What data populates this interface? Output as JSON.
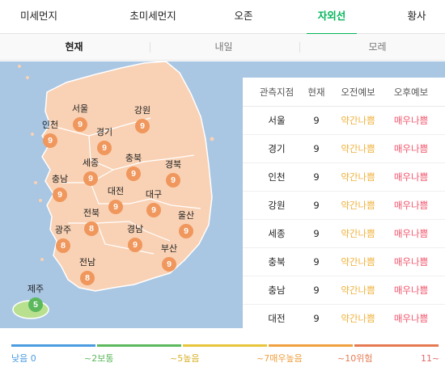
{
  "tabs": [
    {
      "label": "미세먼지",
      "active": false
    },
    {
      "label": "초미세먼지",
      "active": false
    },
    {
      "label": "오존",
      "active": false
    },
    {
      "label": "자외선",
      "active": true
    },
    {
      "label": "황사",
      "active": false
    }
  ],
  "subtabs": [
    {
      "label": "현재",
      "active": true
    },
    {
      "label": "내일",
      "active": false
    },
    {
      "label": "모레",
      "active": false
    }
  ],
  "map": {
    "regions": [
      {
        "name": "서울",
        "value": "9"
      },
      {
        "name": "강원",
        "value": "9"
      },
      {
        "name": "인천",
        "value": "9"
      },
      {
        "name": "경기",
        "value": "9"
      },
      {
        "name": "세종",
        "value": "9"
      },
      {
        "name": "충북",
        "value": "9"
      },
      {
        "name": "경북",
        "value": "9"
      },
      {
        "name": "충남",
        "value": "9"
      },
      {
        "name": "대전",
        "value": "9"
      },
      {
        "name": "대구",
        "value": "9"
      },
      {
        "name": "전북",
        "value": "8"
      },
      {
        "name": "울산",
        "value": "9"
      },
      {
        "name": "광주",
        "value": "8"
      },
      {
        "name": "경남",
        "value": "9"
      },
      {
        "name": "부산",
        "value": "9"
      },
      {
        "name": "전남",
        "value": "8"
      },
      {
        "name": "제주",
        "value": "5"
      }
    ],
    "colors": {
      "sea": "#a9c6e3",
      "land": "#f9d2b5",
      "badge_high": "#f0975d",
      "badge_mid": "#5cb85c"
    }
  },
  "table": {
    "headers": [
      "관측지점",
      "현재",
      "오전예보",
      "오후예보"
    ],
    "rows": [
      {
        "name": "서울",
        "now": "9",
        "am": "약간나쁨",
        "pm": "매우나쁨"
      },
      {
        "name": "경기",
        "now": "9",
        "am": "약간나쁨",
        "pm": "매우나쁨"
      },
      {
        "name": "인천",
        "now": "9",
        "am": "약간나쁨",
        "pm": "매우나쁨"
      },
      {
        "name": "강원",
        "now": "9",
        "am": "약간나쁨",
        "pm": "매우나쁨"
      },
      {
        "name": "세종",
        "now": "9",
        "am": "약간나쁨",
        "pm": "매우나쁨"
      },
      {
        "name": "충북",
        "now": "9",
        "am": "약간나쁨",
        "pm": "매우나쁨"
      },
      {
        "name": "충남",
        "now": "9",
        "am": "약간나쁨",
        "pm": "매우나쁨"
      },
      {
        "name": "대전",
        "now": "9",
        "am": "약간나쁨",
        "pm": "매우나쁨"
      }
    ]
  },
  "legend": [
    {
      "label": "낮음 0",
      "color": "#4a9be0"
    },
    {
      "label": "~2보통",
      "color": "#5cb85c"
    },
    {
      "label": "~5높음",
      "color": "#e8c53a"
    },
    {
      "label": "~7매우높음",
      "color": "#f0a040"
    },
    {
      "label": "~10위험",
      "color": "#e57a52"
    },
    {
      "label": "11~",
      "color": "#e06a6a"
    }
  ]
}
